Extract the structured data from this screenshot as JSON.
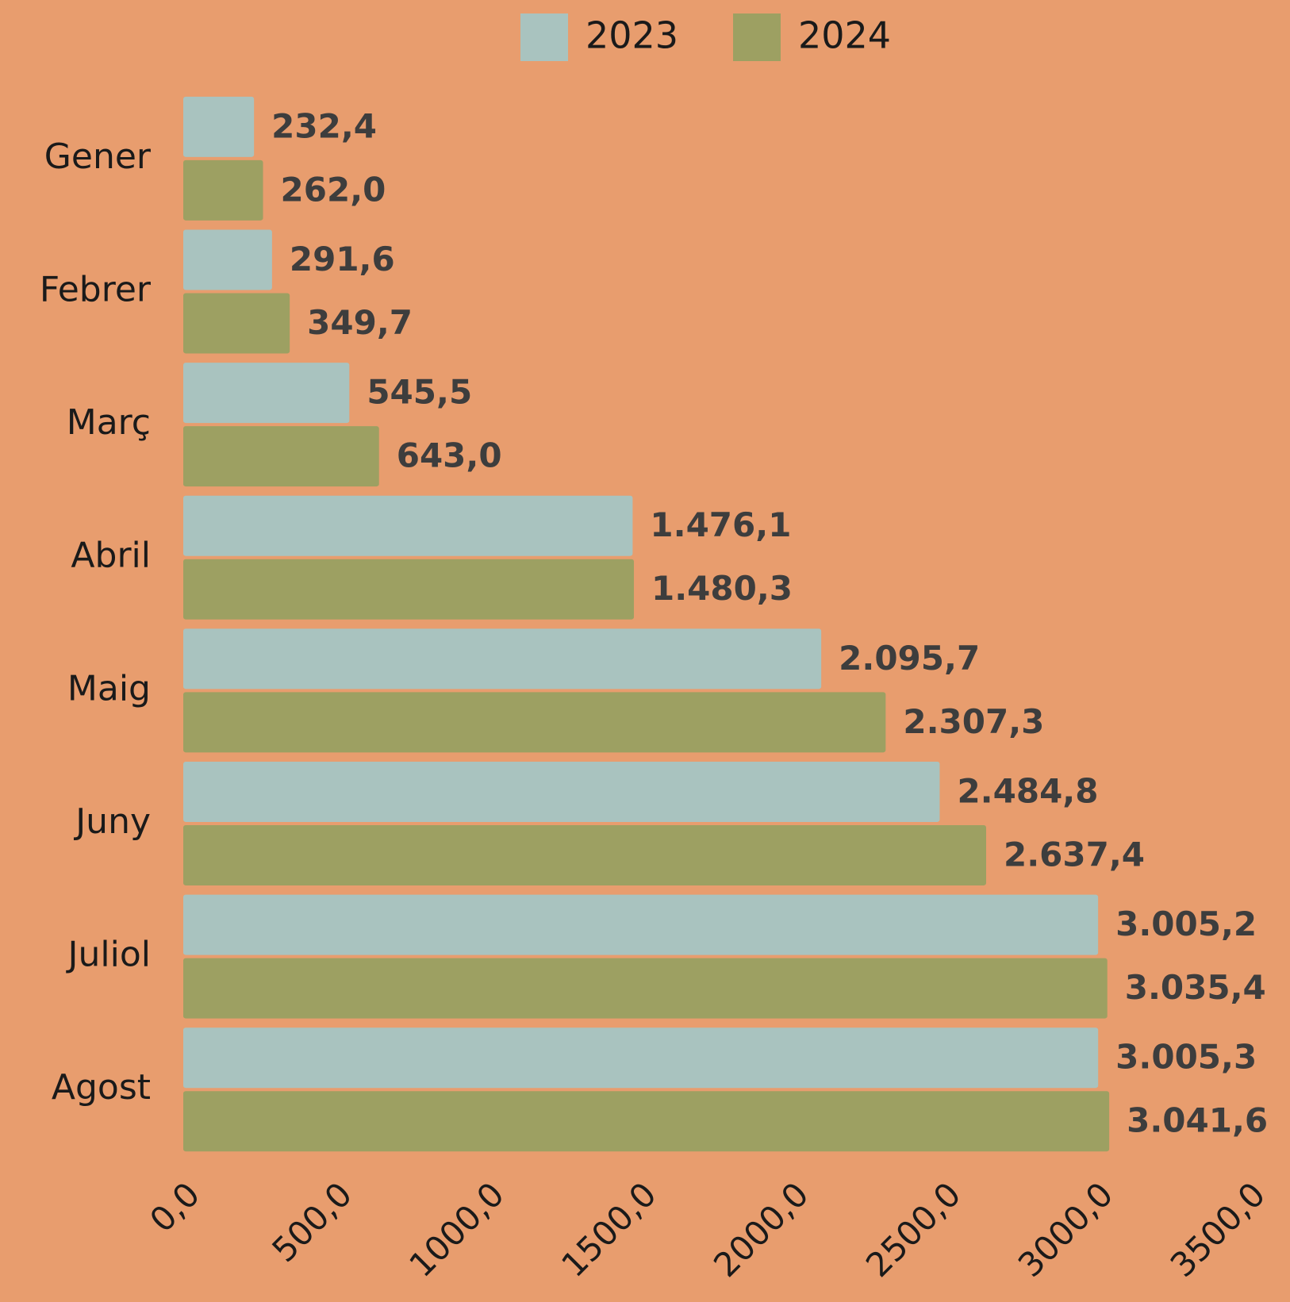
{
  "chart_data": {
    "type": "bar",
    "orientation": "horizontal",
    "categories": [
      "Gener",
      "Febrer",
      "Març",
      "Abril",
      "Maig",
      "Juny",
      "Juliol",
      "Agost"
    ],
    "series": [
      {
        "name": "2023",
        "color": "#a9c3bf",
        "values": [
          232.4,
          291.6,
          545.5,
          1476.1,
          2095.7,
          2484.8,
          3005.2,
          3005.3
        ],
        "value_labels": [
          "232,4",
          "291,6",
          "545,5",
          "1.476,1",
          "2.095,7",
          "2.484,8",
          "3.005,2",
          "3.005,3"
        ]
      },
      {
        "name": "2024",
        "color": "#9da062",
        "values": [
          262.0,
          349.7,
          643.0,
          1480.3,
          2307.3,
          2637.4,
          3035.4,
          3041.6
        ],
        "value_labels": [
          "262,0",
          "349,7",
          "643,0",
          "1.480,3",
          "2.307,3",
          "2.637,4",
          "3.035,4",
          "3.041,6"
        ]
      }
    ],
    "xlim": [
      0,
      3500
    ],
    "xticks": [
      {
        "value": 0,
        "label": "0,0"
      },
      {
        "value": 500,
        "label": "500,0"
      },
      {
        "value": 1000,
        "label": "1000,0"
      },
      {
        "value": 1500,
        "label": "1500,0"
      },
      {
        "value": 2000,
        "label": "2000,0"
      },
      {
        "value": 2500,
        "label": "2500,0"
      },
      {
        "value": 3000,
        "label": "3000,0"
      },
      {
        "value": 3500,
        "label": "3500,0"
      }
    ],
    "grid": false,
    "legend": "top"
  }
}
